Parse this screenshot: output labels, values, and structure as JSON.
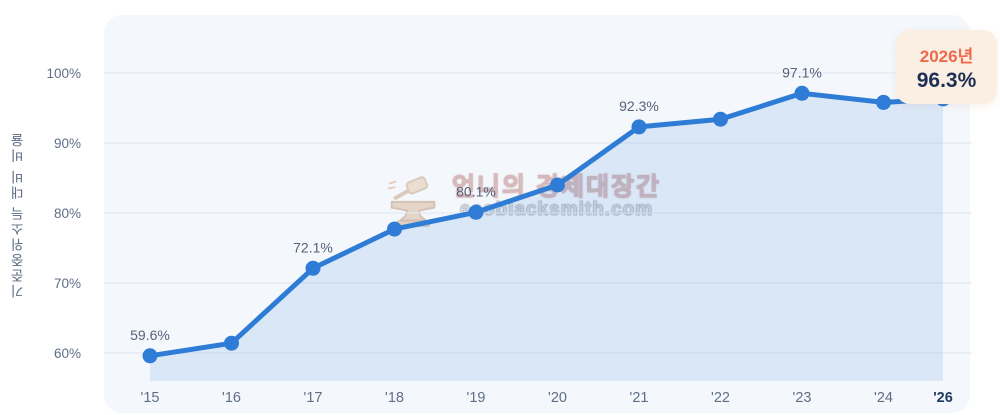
{
  "chart_data": {
    "type": "line",
    "title": "",
    "ylabel": "기준중위소득 대비 비율",
    "xlabel": "",
    "categories": [
      "'15",
      "'16",
      "'17",
      "'18",
      "'19",
      "'20",
      "'21",
      "'22",
      "'23",
      "'24",
      "'26"
    ],
    "values": [
      59.6,
      61.4,
      72.1,
      77.7,
      80.1,
      84.0,
      92.3,
      93.4,
      97.1,
      95.8,
      96.3
    ],
    "point_labels": {
      "0": "59.6%",
      "2": "72.1%",
      "4": "80.1%",
      "6": "92.3%",
      "8": "97.1%"
    },
    "y_ticks": [
      {
        "value": 60,
        "label": "60%"
      },
      {
        "value": 70,
        "label": "70%"
      },
      {
        "value": 80,
        "label": "80%"
      },
      {
        "value": 90,
        "label": "90%"
      },
      {
        "value": 100,
        "label": "100%"
      }
    ],
    "ylim": [
      56,
      108
    ],
    "grid": true,
    "legend_position": "none",
    "colors": {
      "line": "#2E7CD6",
      "point": "#2E7CD6",
      "area": "rgba(46,124,214,0.13)",
      "grid": "#E3E9F2",
      "tick": "#5F6E86",
      "last_tick": "#1E3A5F",
      "point_label": "#55627A"
    }
  },
  "callout": {
    "year": "2026년",
    "value": "96.3%",
    "bg": "#FBEEE3",
    "year_color": "#EE6A4A",
    "value_color": "#1C2F55"
  },
  "watermark": {
    "title": "언니의 경제대장간",
    "url": "ecoblacksmith.com"
  }
}
